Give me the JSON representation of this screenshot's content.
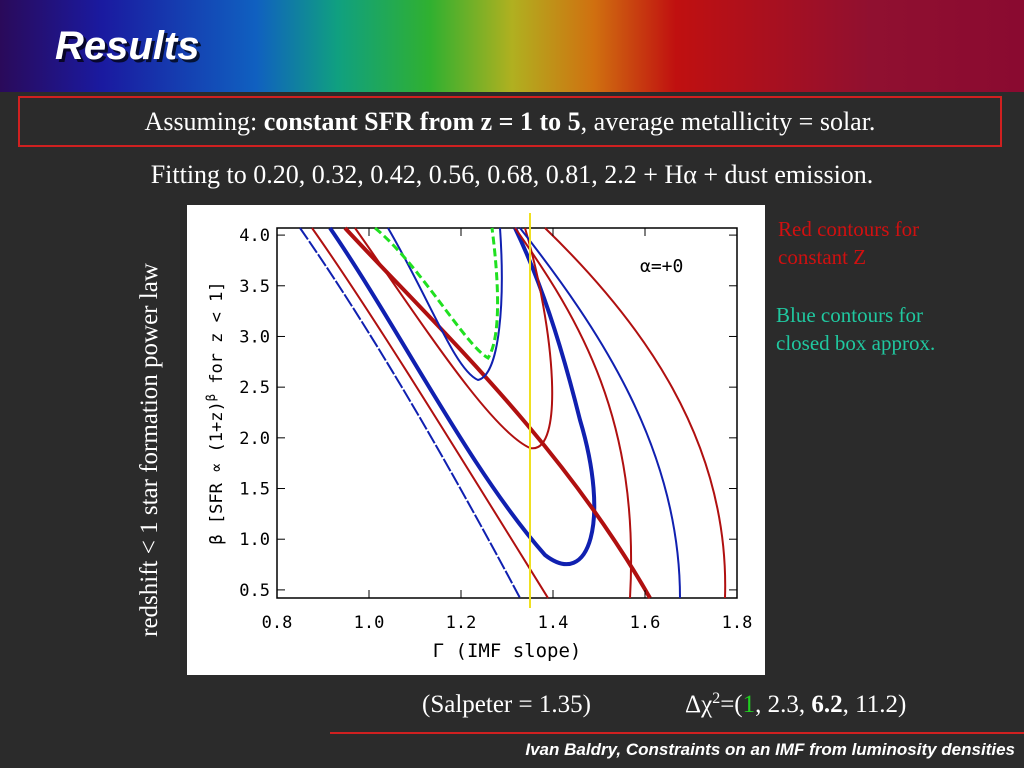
{
  "header": {
    "title": "Results"
  },
  "assumption": {
    "prefix": "Assuming: ",
    "bold": "constant SFR from z = 1 to 5",
    "suffix": ", average metallicity = solar."
  },
  "fitting": "Fitting to 0.20, 0.32, 0.42, 0.56, 0.68, 0.81, 2.2 + Hα + dust emission.",
  "side_label": "redshift < 1 star formation power law",
  "plot": {
    "x_label": "Γ (IMF slope)",
    "y_label": {
      "before": "β [SFR ∝ (1+z)",
      "sup": "β",
      "after": " for z < 1]"
    },
    "annotation": "α=+0",
    "xlim": [
      0.8,
      1.8
    ],
    "ylim": [
      0.42,
      4.07
    ],
    "xticks": [
      0.8,
      {
        "value": 1.0,
        "label": "1.0"
      },
      1.2,
      1.4,
      1.6,
      1.8
    ],
    "yticks": [
      0.5,
      {
        "value": 1.0,
        "label": "1.0"
      },
      1.5,
      {
        "value": 2.0,
        "label": "2.0"
      },
      2.5,
      {
        "value": 3.0,
        "label": "3.0"
      },
      3.5,
      {
        "value": 4.0,
        "label": "4.0"
      }
    ],
    "salpeter_gamma": 1.35
  },
  "notes": {
    "red": [
      "Red contours for",
      "constant Z"
    ],
    "blue": [
      "Blue contours for",
      "closed box approx."
    ]
  },
  "salpeter": "(Salpeter = 1.35)",
  "delta_chi": {
    "symbol": "Δχ",
    "sup": "2",
    "open": "=(",
    "first": "1",
    "sep1": ", 2.3, ",
    "third": "6.2",
    "rest": ", 11.2)"
  },
  "footer": "Ivan Baldry, Constraints on an IMF from luminosity densities"
}
